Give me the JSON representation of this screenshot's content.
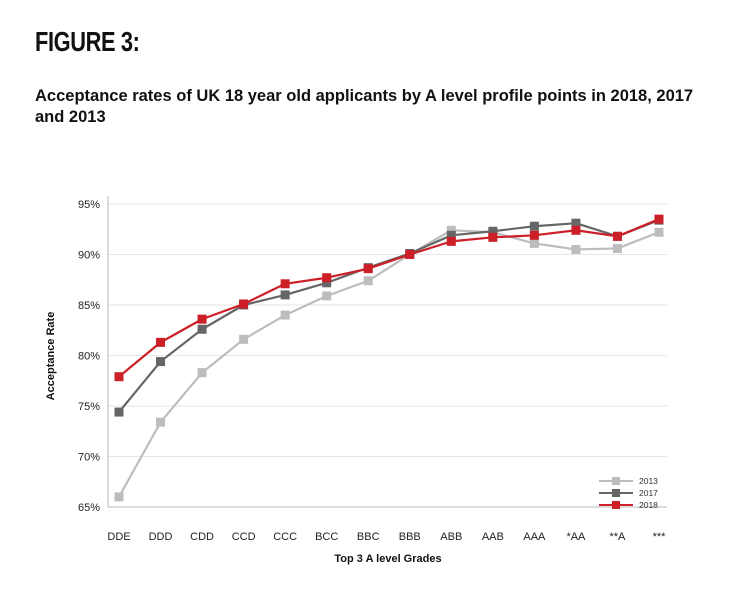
{
  "figure_label": "FIGURE 3:",
  "subtitle": "Acceptance rates of UK 18 year old applicants by A level profile points in 2018, 2017 and 2013",
  "chart_data": {
    "type": "line",
    "title": "",
    "xlabel": "Top 3 A level Grades",
    "ylabel": "Acceptance Rate",
    "categories": [
      "DDE",
      "DDD",
      "CDD",
      "CCD",
      "CCC",
      "BCC",
      "BBC",
      "BBB",
      "ABB",
      "AAB",
      "AAA",
      "*AA",
      "**A",
      "***"
    ],
    "ylim": [
      65,
      95
    ],
    "yticks": [
      95,
      90,
      85,
      80,
      75,
      70,
      65
    ],
    "ytick_labels": [
      "95%",
      "90%",
      "85%",
      "80%",
      "75%",
      "70%",
      "65%"
    ],
    "grid": true,
    "legend_position": "bottom-right",
    "series": [
      {
        "name": "2013",
        "color": "#bdbdbd",
        "values": [
          66.0,
          73.4,
          78.3,
          81.6,
          84.0,
          85.9,
          87.4,
          90.0,
          92.4,
          92.2,
          91.1,
          90.5,
          90.6,
          92.2
        ]
      },
      {
        "name": "2017",
        "color": "#666666",
        "values": [
          74.4,
          79.4,
          82.6,
          85.0,
          86.0,
          87.2,
          88.7,
          90.1,
          91.9,
          92.3,
          92.8,
          93.1,
          91.8,
          93.4
        ]
      },
      {
        "name": "2018",
        "color": "#cc1f27",
        "values": [
          77.9,
          81.3,
          83.6,
          85.1,
          87.1,
          87.7,
          88.6,
          90.0,
          91.3,
          91.7,
          91.9,
          92.4,
          91.8,
          93.5
        ]
      }
    ]
  }
}
